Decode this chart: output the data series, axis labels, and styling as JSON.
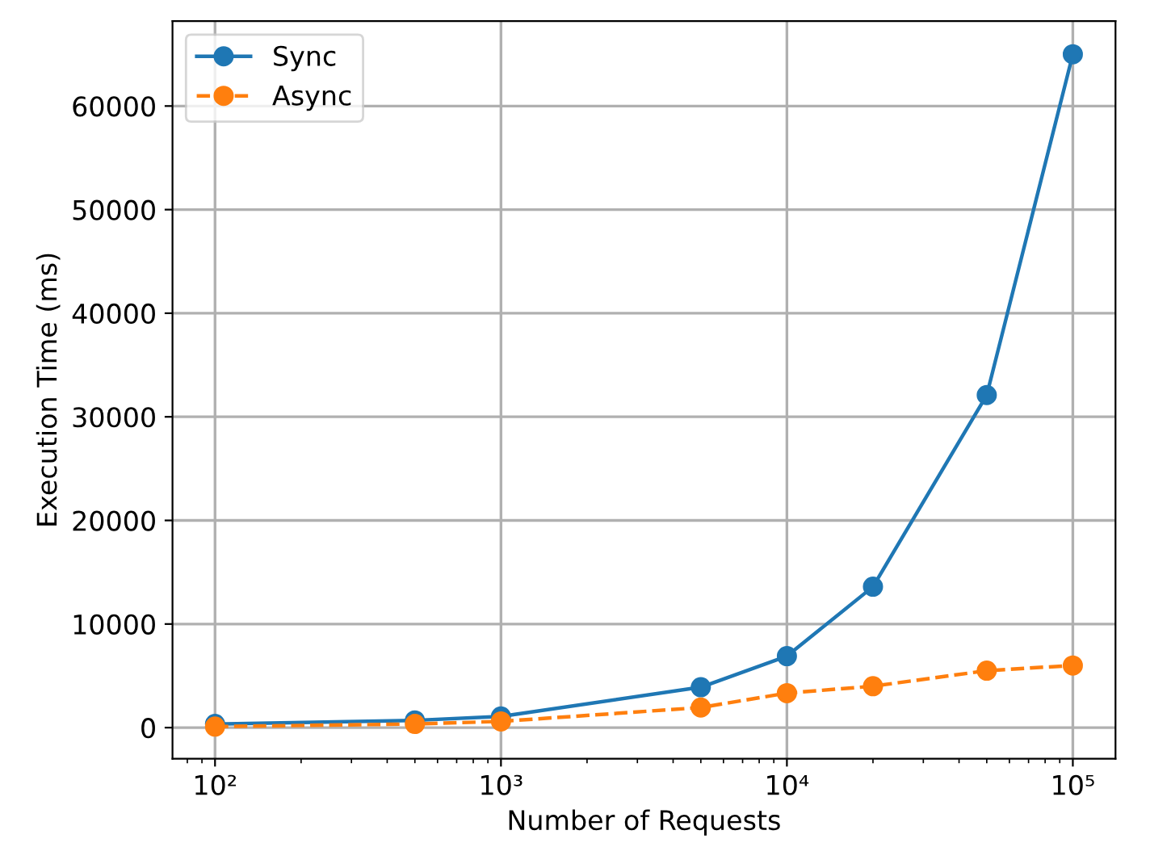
{
  "chart_data": {
    "type": "line",
    "xlabel": "Number of Requests",
    "ylabel": "Execution Time (ms)",
    "x": [
      100,
      500,
      1000,
      5000,
      10000,
      20000,
      50000,
      100000
    ],
    "series": [
      {
        "name": "Sync",
        "color": "#1f77b4",
        "line_style": "solid",
        "values": [
          350,
          700,
          1080,
          3900,
          6900,
          13600,
          32100,
          65000
        ]
      },
      {
        "name": "Async",
        "color": "#ff7f0e",
        "line_style": "dashed",
        "values": [
          100,
          350,
          600,
          1940,
          3330,
          4000,
          5500,
          6000
        ]
      }
    ],
    "log": "x",
    "marker": "circle",
    "grid": true,
    "legend": "top left",
    "xlim": [
      71,
      141000
    ],
    "ylim": [
      -3000,
      68200
    ],
    "xticks": [
      {
        "value": 100,
        "label": "10²"
      },
      {
        "value": 1000,
        "label": "10³"
      },
      {
        "value": 10000,
        "label": "10⁴"
      },
      {
        "value": 100000,
        "label": "10⁵"
      }
    ],
    "yticks": [
      0,
      10000,
      20000,
      30000,
      40000,
      50000,
      60000
    ]
  }
}
